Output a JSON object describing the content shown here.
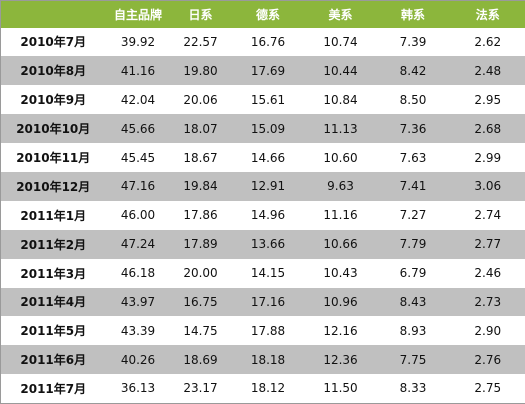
{
  "table": {
    "columns": [
      "自主品牌",
      "日系",
      "德系",
      "美系",
      "韩系",
      "法系"
    ],
    "rows": [
      [
        "2010年7月",
        "39.92",
        "22.57",
        "16.76",
        "10.74",
        "7.39",
        "2.62"
      ],
      [
        "2010年8月",
        "41.16",
        "19.80",
        "17.69",
        "10.44",
        "8.42",
        "2.48"
      ],
      [
        "2010年9月",
        "42.04",
        "20.06",
        "15.61",
        "10.84",
        "8.50",
        "2.95"
      ],
      [
        "2010年10月",
        "45.66",
        "18.07",
        "15.09",
        "11.13",
        "7.36",
        "2.68"
      ],
      [
        "2010年11月",
        "45.45",
        "18.67",
        "14.66",
        "10.60",
        "7.63",
        "2.99"
      ],
      [
        "2010年12月",
        "47.16",
        "19.84",
        "12.91",
        "9.63",
        "7.41",
        "3.06"
      ],
      [
        "2011年1月",
        "46.00",
        "17.86",
        "14.96",
        "11.16",
        "7.27",
        "2.74"
      ],
      [
        "2011年2月",
        "47.24",
        "17.89",
        "13.66",
        "10.66",
        "7.79",
        "2.77"
      ],
      [
        "2011年3月",
        "46.18",
        "20.00",
        "14.15",
        "10.43",
        "6.79",
        "2.46"
      ],
      [
        "2011年4月",
        "43.97",
        "16.75",
        "17.16",
        "10.96",
        "8.43",
        "2.73"
      ],
      [
        "2011年5月",
        "43.39",
        "14.75",
        "17.88",
        "12.16",
        "8.93",
        "2.90"
      ],
      [
        "2011年6月",
        "40.26",
        "18.69",
        "18.18",
        "12.36",
        "7.75",
        "2.76"
      ],
      [
        "2011年7月",
        "36.13",
        "23.17",
        "18.12",
        "11.50",
        "8.33",
        "2.75"
      ]
    ]
  }
}
